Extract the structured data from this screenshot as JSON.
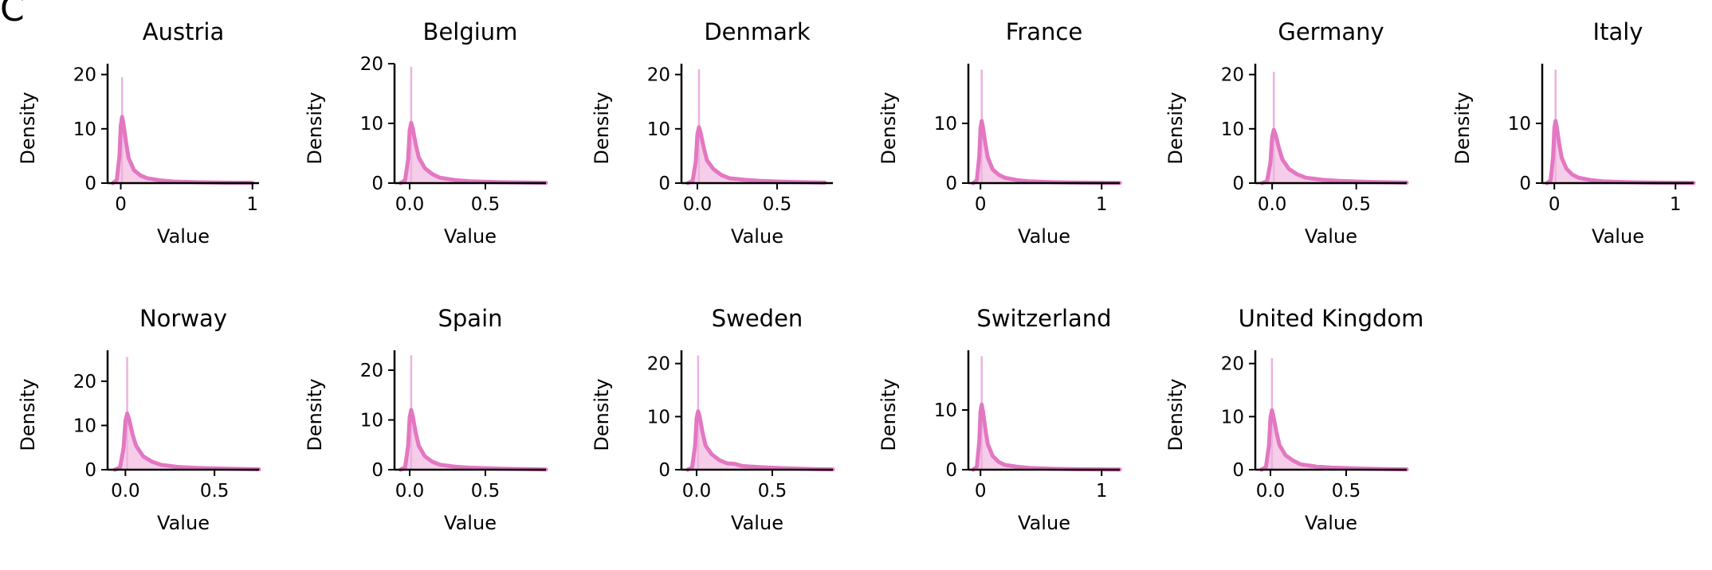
{
  "figure": {
    "panel_label": "C"
  },
  "chart_data": [
    {
      "type": "area",
      "title": "Austria",
      "xlabel": "Value",
      "ylabel": "Density",
      "xlim": [
        -0.1,
        1.05
      ],
      "ylim": [
        0,
        22
      ],
      "xticks": [
        0,
        1
      ],
      "xtick_labels": [
        "0",
        "1"
      ],
      "yticks": [
        0,
        10,
        20
      ],
      "ytick_labels": [
        "0",
        "10",
        "20"
      ],
      "spike_x": 0.01,
      "spike_height": 19.5,
      "series": [
        {
          "x": [
            -0.06,
            -0.03,
            -0.01,
            0.0,
            0.01,
            0.02,
            0.04,
            0.06,
            0.1,
            0.15,
            0.2,
            0.3,
            0.4,
            0.6,
            0.8,
            1.0
          ],
          "y": [
            0,
            0.6,
            5.0,
            10.5,
            12.2,
            11.0,
            7.5,
            4.6,
            2.4,
            1.4,
            0.9,
            0.5,
            0.3,
            0.15,
            0.08,
            0.05
          ]
        }
      ]
    },
    {
      "type": "area",
      "title": "Belgium",
      "xlabel": "Value",
      "ylabel": "Density",
      "xlim": [
        -0.1,
        0.9
      ],
      "ylim": [
        0,
        20
      ],
      "xticks": [
        0.0,
        0.5
      ],
      "xtick_labels": [
        "0.0",
        "0.5"
      ],
      "yticks": [
        0,
        10,
        20
      ],
      "ytick_labels": [
        "0",
        "10",
        "20"
      ],
      "spike_x": 0.01,
      "spike_height": 19.5,
      "series": [
        {
          "x": [
            -0.06,
            -0.03,
            -0.01,
            0.0,
            0.01,
            0.02,
            0.04,
            0.06,
            0.1,
            0.15,
            0.2,
            0.3,
            0.4,
            0.6,
            0.8,
            0.9
          ],
          "y": [
            0,
            0.5,
            4.0,
            8.8,
            10.1,
            9.2,
            6.5,
            4.3,
            2.5,
            1.5,
            0.9,
            0.5,
            0.3,
            0.15,
            0.08,
            0.05
          ]
        }
      ]
    },
    {
      "type": "area",
      "title": "Denmark",
      "xlabel": "Value",
      "ylabel": "Density",
      "xlim": [
        -0.1,
        0.85
      ],
      "ylim": [
        0,
        22
      ],
      "xticks": [
        0.0,
        0.5
      ],
      "xtick_labels": [
        "0.0",
        "0.5"
      ],
      "yticks": [
        0,
        10,
        20
      ],
      "ytick_labels": [
        "0",
        "10",
        "20"
      ],
      "spike_x": 0.01,
      "spike_height": 21.0,
      "series": [
        {
          "x": [
            -0.06,
            -0.03,
            -0.01,
            0.0,
            0.01,
            0.02,
            0.04,
            0.06,
            0.1,
            0.15,
            0.2,
            0.3,
            0.4,
            0.6,
            0.8
          ],
          "y": [
            0,
            0.4,
            4.0,
            9.0,
            10.3,
            9.3,
            6.5,
            4.2,
            2.6,
            1.5,
            0.9,
            0.6,
            0.4,
            0.2,
            0.1
          ]
        }
      ]
    },
    {
      "type": "area",
      "title": "France",
      "xlabel": "Value",
      "ylabel": "Density",
      "xlim": [
        -0.1,
        1.15
      ],
      "ylim": [
        0,
        20
      ],
      "xticks": [
        0,
        1
      ],
      "xtick_labels": [
        "0",
        "1"
      ],
      "yticks": [
        0,
        10
      ],
      "ytick_labels": [
        "0",
        "10"
      ],
      "spike_x": 0.01,
      "spike_height": 19.0,
      "series": [
        {
          "x": [
            -0.06,
            -0.03,
            -0.01,
            0.0,
            0.01,
            0.02,
            0.04,
            0.06,
            0.1,
            0.15,
            0.2,
            0.3,
            0.4,
            0.6,
            0.8,
            1.0,
            1.15
          ],
          "y": [
            0,
            0.5,
            4.5,
            9.2,
            10.4,
            9.4,
            6.6,
            4.3,
            2.3,
            1.4,
            0.9,
            0.5,
            0.3,
            0.15,
            0.08,
            0.05,
            0.03
          ]
        }
      ]
    },
    {
      "type": "area",
      "title": "Germany",
      "xlabel": "Value",
      "ylabel": "Density",
      "xlim": [
        -0.1,
        0.8
      ],
      "ylim": [
        0,
        22
      ],
      "xticks": [
        0.0,
        0.5
      ],
      "xtick_labels": [
        "0.0",
        "0.5"
      ],
      "yticks": [
        0,
        10,
        20
      ],
      "ytick_labels": [
        "0",
        "10",
        "20"
      ],
      "spike_x": 0.01,
      "spike_height": 20.5,
      "series": [
        {
          "x": [
            -0.06,
            -0.03,
            -0.01,
            0.0,
            0.01,
            0.02,
            0.04,
            0.06,
            0.1,
            0.15,
            0.2,
            0.3,
            0.4,
            0.6,
            0.8
          ],
          "y": [
            0,
            0.4,
            3.8,
            8.5,
            9.8,
            9.0,
            6.5,
            4.4,
            2.6,
            1.6,
            1.0,
            0.6,
            0.4,
            0.2,
            0.1
          ]
        }
      ]
    },
    {
      "type": "area",
      "title": "Italy",
      "xlabel": "Value",
      "ylabel": "Density",
      "xlim": [
        -0.1,
        1.15
      ],
      "ylim": [
        0,
        20
      ],
      "xticks": [
        0,
        1
      ],
      "xtick_labels": [
        "0",
        "1"
      ],
      "yticks": [
        0,
        10
      ],
      "ytick_labels": [
        "0",
        "10"
      ],
      "spike_x": 0.01,
      "spike_height": 19.0,
      "series": [
        {
          "x": [
            -0.06,
            -0.03,
            -0.01,
            0.0,
            0.01,
            0.02,
            0.04,
            0.06,
            0.1,
            0.15,
            0.2,
            0.3,
            0.4,
            0.6,
            0.8,
            1.0,
            1.15
          ],
          "y": [
            0,
            0.5,
            4.5,
            9.2,
            10.4,
            9.4,
            6.6,
            4.3,
            2.4,
            1.4,
            0.9,
            0.5,
            0.3,
            0.15,
            0.08,
            0.05,
            0.03
          ]
        }
      ]
    },
    {
      "type": "area",
      "title": "Norway",
      "xlabel": "Value",
      "ylabel": "Density",
      "xlim": [
        -0.1,
        0.75
      ],
      "ylim": [
        0,
        27
      ],
      "xticks": [
        0.0,
        0.5
      ],
      "xtick_labels": [
        "0.0",
        "0.5"
      ],
      "yticks": [
        0,
        10,
        20
      ],
      "ytick_labels": [
        "0",
        "10",
        "20"
      ],
      "spike_x": 0.01,
      "spike_height": 25.5,
      "series": [
        {
          "x": [
            -0.06,
            -0.03,
            -0.01,
            0.0,
            0.01,
            0.02,
            0.04,
            0.06,
            0.1,
            0.15,
            0.2,
            0.3,
            0.4,
            0.6,
            0.75
          ],
          "y": [
            0,
            0.5,
            5.0,
            11.0,
            12.7,
            11.5,
            8.0,
            5.4,
            3.0,
            1.8,
            1.1,
            0.6,
            0.4,
            0.2,
            0.1
          ]
        }
      ]
    },
    {
      "type": "area",
      "title": "Spain",
      "xlabel": "Value",
      "ylabel": "Density",
      "xlim": [
        -0.1,
        0.9
      ],
      "ylim": [
        0,
        24
      ],
      "xticks": [
        0.0,
        0.5
      ],
      "xtick_labels": [
        "0.0",
        "0.5"
      ],
      "yticks": [
        0,
        10,
        20
      ],
      "ytick_labels": [
        "0",
        "10",
        "20"
      ],
      "spike_x": 0.01,
      "spike_height": 23.0,
      "series": [
        {
          "x": [
            -0.06,
            -0.03,
            -0.01,
            0.0,
            0.01,
            0.02,
            0.04,
            0.06,
            0.1,
            0.15,
            0.2,
            0.3,
            0.4,
            0.6,
            0.8,
            0.9
          ],
          "y": [
            0,
            0.5,
            4.8,
            10.5,
            12.0,
            10.8,
            7.4,
            4.8,
            2.7,
            1.6,
            1.0,
            0.6,
            0.4,
            0.2,
            0.1,
            0.05
          ]
        }
      ]
    },
    {
      "type": "area",
      "title": "Sweden",
      "xlabel": "Value",
      "ylabel": "Density",
      "xlim": [
        -0.1,
        0.9
      ],
      "ylim": [
        0,
        22.5
      ],
      "xticks": [
        0.0,
        0.5
      ],
      "xtick_labels": [
        "0.0",
        "0.5"
      ],
      "yticks": [
        0,
        10,
        20
      ],
      "ytick_labels": [
        "0",
        "10",
        "20"
      ],
      "spike_x": 0.01,
      "spike_height": 21.5,
      "series": [
        {
          "x": [
            -0.06,
            -0.03,
            -0.01,
            0.0,
            0.01,
            0.02,
            0.04,
            0.06,
            0.1,
            0.15,
            0.2,
            0.25,
            0.3,
            0.4,
            0.6,
            0.8,
            0.9
          ],
          "y": [
            0,
            0.4,
            4.5,
            9.7,
            11.0,
            10.0,
            6.9,
            4.5,
            2.9,
            1.8,
            1.2,
            1.1,
            0.7,
            0.5,
            0.25,
            0.1,
            0.05
          ]
        }
      ]
    },
    {
      "type": "area",
      "title": "Switzerland",
      "xlabel": "Value",
      "ylabel": "Density",
      "xlim": [
        -0.1,
        1.15
      ],
      "ylim": [
        0,
        20
      ],
      "xticks": [
        0,
        1
      ],
      "xtick_labels": [
        "0",
        "1"
      ],
      "yticks": [
        0,
        10
      ],
      "ytick_labels": [
        "0",
        "10"
      ],
      "spike_x": 0.01,
      "spike_height": 19.0,
      "series": [
        {
          "x": [
            -0.06,
            -0.03,
            -0.01,
            0.0,
            0.01,
            0.02,
            0.04,
            0.06,
            0.1,
            0.15,
            0.2,
            0.3,
            0.4,
            0.6,
            0.8,
            1.0,
            1.15
          ],
          "y": [
            0,
            0.5,
            4.8,
            9.7,
            10.9,
            9.8,
            6.8,
            4.3,
            2.3,
            1.3,
            0.8,
            0.5,
            0.3,
            0.15,
            0.08,
            0.05,
            0.03
          ]
        }
      ]
    },
    {
      "type": "area",
      "title": "United Kingdom",
      "xlabel": "Value",
      "ylabel": "Density",
      "xlim": [
        -0.1,
        0.9
      ],
      "ylim": [
        0,
        22.5
      ],
      "xticks": [
        0.0,
        0.5
      ],
      "xtick_labels": [
        "0.0",
        "0.5"
      ],
      "yticks": [
        0,
        10,
        20
      ],
      "ytick_labels": [
        "0",
        "10",
        "20"
      ],
      "spike_x": 0.01,
      "spike_height": 21.0,
      "series": [
        {
          "x": [
            -0.06,
            -0.03,
            -0.01,
            0.0,
            0.01,
            0.02,
            0.04,
            0.06,
            0.1,
            0.15,
            0.2,
            0.3,
            0.4,
            0.6,
            0.8,
            0.9
          ],
          "y": [
            0,
            0.5,
            4.5,
            9.8,
            11.2,
            10.0,
            7.0,
            4.6,
            2.7,
            1.7,
            1.0,
            0.6,
            0.4,
            0.2,
            0.1,
            0.05
          ]
        }
      ]
    }
  ],
  "colors": {
    "line": "#e377c2",
    "fill": "#f6cde8",
    "spike": "#ecb3dc",
    "axis": "#000000"
  }
}
